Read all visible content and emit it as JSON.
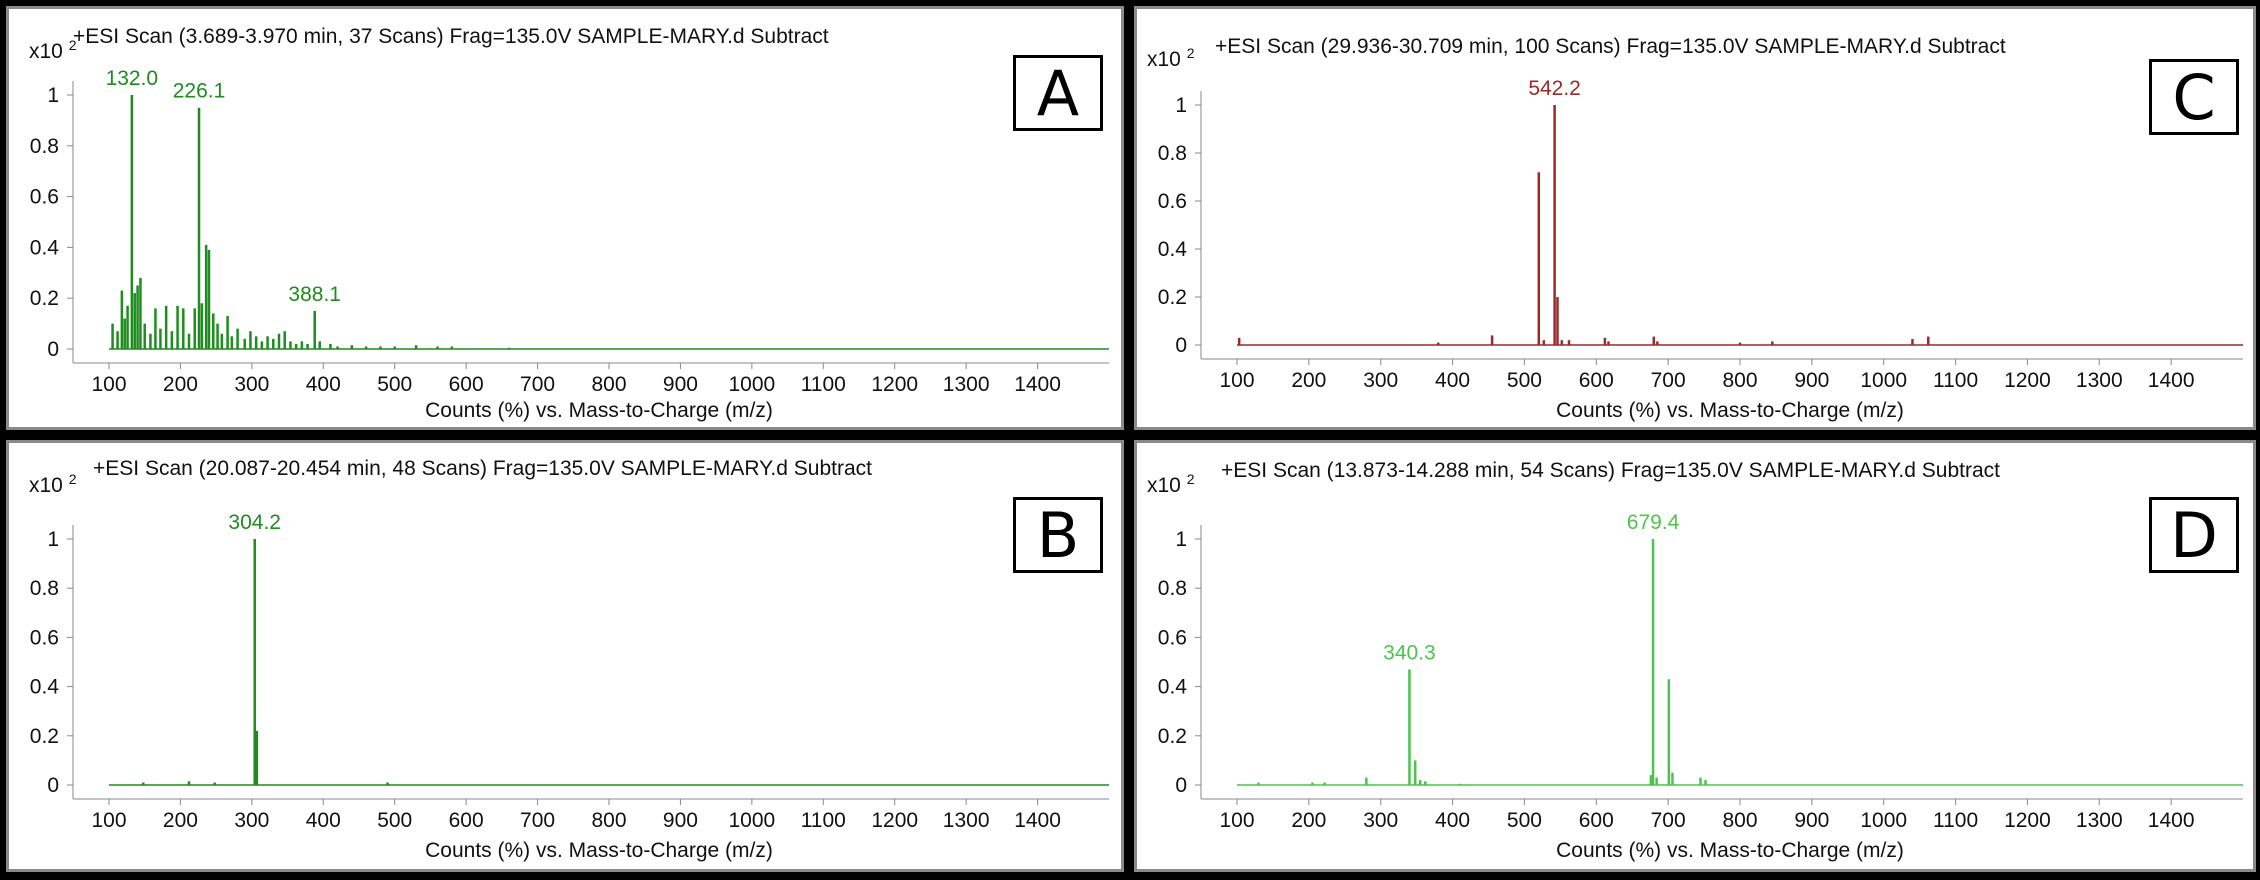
{
  "chart_data": [
    {
      "id": "A",
      "type": "line",
      "panel_letter": "A",
      "title": "+ESI Scan (3.689-3.970 min, 37 Scans) Frag=135.0V SAMPLE-MARY.d  Subtract",
      "scale_label": "x10",
      "scale_exp": "2",
      "xlabel": "Counts (%) vs. Mass-to-Charge (m/z)",
      "xlim": [
        100,
        1500
      ],
      "ylim": [
        0,
        1
      ],
      "xticks": [
        100,
        200,
        300,
        400,
        500,
        600,
        700,
        800,
        900,
        1000,
        1100,
        1200,
        1300,
        1400
      ],
      "yticks": [
        0,
        0.2,
        0.4,
        0.6,
        0.8,
        1
      ],
      "ytick_labels": [
        "0",
        "0.2",
        "0.4",
        "0.6",
        "0.8",
        "1"
      ],
      "color": "#1e8c1e",
      "peaks": [
        [
          105,
          0.1
        ],
        [
          112,
          0.07
        ],
        [
          118,
          0.23
        ],
        [
          122,
          0.12
        ],
        [
          126,
          0.17
        ],
        [
          132,
          1.0
        ],
        [
          136,
          0.22
        ],
        [
          140,
          0.25
        ],
        [
          144,
          0.28
        ],
        [
          150,
          0.1
        ],
        [
          158,
          0.06
        ],
        [
          165,
          0.16
        ],
        [
          172,
          0.08
        ],
        [
          180,
          0.17
        ],
        [
          188,
          0.07
        ],
        [
          196,
          0.17
        ],
        [
          204,
          0.16
        ],
        [
          212,
          0.06
        ],
        [
          220,
          0.16
        ],
        [
          226,
          0.95
        ],
        [
          230,
          0.18
        ],
        [
          236,
          0.41
        ],
        [
          240,
          0.39
        ],
        [
          246,
          0.14
        ],
        [
          252,
          0.1
        ],
        [
          258,
          0.06
        ],
        [
          266,
          0.13
        ],
        [
          272,
          0.05
        ],
        [
          280,
          0.08
        ],
        [
          290,
          0.04
        ],
        [
          298,
          0.07
        ],
        [
          306,
          0.05
        ],
        [
          314,
          0.03
        ],
        [
          322,
          0.05
        ],
        [
          330,
          0.04
        ],
        [
          338,
          0.06
        ],
        [
          346,
          0.07
        ],
        [
          354,
          0.03
        ],
        [
          362,
          0.02
        ],
        [
          370,
          0.03
        ],
        [
          378,
          0.02
        ],
        [
          388,
          0.15
        ],
        [
          395,
          0.03
        ],
        [
          410,
          0.02
        ],
        [
          420,
          0.01
        ],
        [
          440,
          0.015
        ],
        [
          460,
          0.01
        ],
        [
          480,
          0.01
        ],
        [
          500,
          0.01
        ],
        [
          530,
          0.015
        ],
        [
          560,
          0.01
        ],
        [
          580,
          0.01
        ],
        [
          660,
          0.005
        ]
      ],
      "labels": [
        {
          "text": "132.0",
          "x": 132,
          "y": 1.0
        },
        {
          "text": "226.1",
          "x": 226,
          "y": 0.95
        },
        {
          "text": "388.1",
          "x": 388,
          "y": 0.15
        }
      ]
    },
    {
      "id": "C",
      "type": "line",
      "panel_letter": "C",
      "title": "+ESI Scan (29.936-30.709 min, 100 Scans) Frag=135.0V SAMPLE-MARY.d  Subtract",
      "scale_label": "x10",
      "scale_exp": "2",
      "xlabel": "Counts (%) vs. Mass-to-Charge (m/z)",
      "xlim": [
        100,
        1500
      ],
      "ylim": [
        0,
        1
      ],
      "xticks": [
        100,
        200,
        300,
        400,
        500,
        600,
        700,
        800,
        900,
        1000,
        1100,
        1200,
        1300,
        1400
      ],
      "yticks": [
        0,
        0.2,
        0.4,
        0.6,
        0.8,
        1
      ],
      "ytick_labels": [
        "0",
        "0.2",
        "0.4",
        "0.6",
        "0.8",
        "1"
      ],
      "color": "#9b2a2a",
      "peaks": [
        [
          103,
          0.03
        ],
        [
          380,
          0.01
        ],
        [
          455,
          0.04
        ],
        [
          520,
          0.72
        ],
        [
          527,
          0.02
        ],
        [
          542,
          1.0
        ],
        [
          546,
          0.2
        ],
        [
          552,
          0.02
        ],
        [
          562,
          0.02
        ],
        [
          612,
          0.03
        ],
        [
          617,
          0.015
        ],
        [
          680,
          0.035
        ],
        [
          685,
          0.015
        ],
        [
          800,
          0.01
        ],
        [
          845,
          0.015
        ],
        [
          1040,
          0.025
        ],
        [
          1062,
          0.035
        ]
      ],
      "labels": [
        {
          "text": "542.2",
          "x": 542,
          "y": 1.0
        }
      ]
    },
    {
      "id": "B",
      "type": "line",
      "panel_letter": "B",
      "title": "+ESI Scan (20.087-20.454 min, 48 Scans) Frag=135.0V SAMPLE-MARY.d  Subtract",
      "scale_label": "x10",
      "scale_exp": "2",
      "xlabel": "Counts (%) vs. Mass-to-Charge (m/z)",
      "xlim": [
        100,
        1500
      ],
      "ylim": [
        0,
        1
      ],
      "xticks": [
        100,
        200,
        300,
        400,
        500,
        600,
        700,
        800,
        900,
        1000,
        1100,
        1200,
        1300,
        1400
      ],
      "yticks": [
        0,
        0.2,
        0.4,
        0.6,
        0.8,
        1
      ],
      "ytick_labels": [
        "0",
        "0.2",
        "0.4",
        "0.6",
        "0.8",
        "1"
      ],
      "color": "#1e8c1e",
      "peaks": [
        [
          148,
          0.01
        ],
        [
          212,
          0.015
        ],
        [
          248,
          0.01
        ],
        [
          304,
          1.0
        ],
        [
          307,
          0.22
        ],
        [
          490,
          0.01
        ]
      ],
      "labels": [
        {
          "text": "304.2",
          "x": 304,
          "y": 1.0
        }
      ]
    },
    {
      "id": "D",
      "type": "line",
      "panel_letter": "D",
      "title": "+ESI Scan (13.873-14.288 min, 54 Scans) Frag=135.0V SAMPLE-MARY.d  Subtract",
      "scale_label": "x10",
      "scale_exp": "2",
      "xlabel": "Counts (%) vs. Mass-to-Charge (m/z)",
      "xlim": [
        100,
        1500
      ],
      "ylim": [
        0,
        1
      ],
      "xticks": [
        100,
        200,
        300,
        400,
        500,
        600,
        700,
        800,
        900,
        1000,
        1100,
        1200,
        1300,
        1400
      ],
      "yticks": [
        0,
        0.2,
        0.4,
        0.6,
        0.8,
        1
      ],
      "ytick_labels": [
        "0",
        "0.2",
        "0.4",
        "0.6",
        "0.8",
        "1"
      ],
      "color": "#4cc44c",
      "peaks": [
        [
          130,
          0.01
        ],
        [
          205,
          0.01
        ],
        [
          222,
          0.01
        ],
        [
          280,
          0.03
        ],
        [
          340,
          0.47
        ],
        [
          348,
          0.1
        ],
        [
          355,
          0.02
        ],
        [
          362,
          0.015
        ],
        [
          410,
          0.005
        ],
        [
          676,
          0.04
        ],
        [
          679,
          1.0
        ],
        [
          684,
          0.03
        ],
        [
          701,
          0.43
        ],
        [
          706,
          0.05
        ],
        [
          745,
          0.03
        ],
        [
          752,
          0.02
        ]
      ],
      "labels": [
        {
          "text": "340.3",
          "x": 340,
          "y": 0.47
        },
        {
          "text": "679.4",
          "x": 679,
          "y": 1.0
        }
      ]
    }
  ]
}
